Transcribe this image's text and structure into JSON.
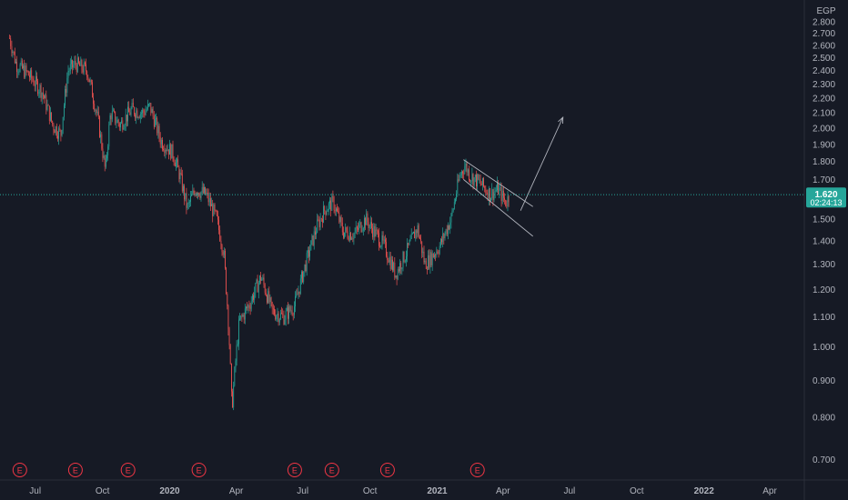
{
  "currency": "EGP",
  "price_badge": {
    "price": "1.620",
    "countdown": "02:24:13"
  },
  "earnings_marker_label": "E",
  "colors": {
    "background": "#161a25",
    "up": "#26a69a",
    "down": "#ef5350",
    "price_line": "#26a69a",
    "earnings": "#f23645",
    "drawing": "#b2b5be"
  },
  "chart_data": {
    "type": "candlestick",
    "title": "",
    "xlabel": "",
    "ylabel": "",
    "y_scale": "log",
    "ylim": [
      0.66,
      2.86
    ],
    "xlim": [
      "2019-05-25",
      "2022-05-25"
    ],
    "grid": false,
    "y_ticks": [
      "2.800",
      "2.700",
      "2.600",
      "2.500",
      "2.400",
      "2.300",
      "2.200",
      "2.100",
      "2.000",
      "1.900",
      "1.800",
      "1.700",
      "1.600",
      "1.500",
      "1.400",
      "1.300",
      "1.200",
      "1.100",
      "1.000",
      "0.900",
      "0.800",
      "0.700"
    ],
    "x_ticks": [
      {
        "label": "Jul",
        "date": "2019-07-01",
        "bold": false
      },
      {
        "label": "Oct",
        "date": "2019-10-01",
        "bold": false
      },
      {
        "label": "2020",
        "date": "2020-01-01",
        "bold": true
      },
      {
        "label": "Apr",
        "date": "2020-04-01",
        "bold": false
      },
      {
        "label": "Jul",
        "date": "2020-07-01",
        "bold": false
      },
      {
        "label": "Oct",
        "date": "2020-10-01",
        "bold": false
      },
      {
        "label": "2021",
        "date": "2021-01-01",
        "bold": true
      },
      {
        "label": "Apr",
        "date": "2021-04-01",
        "bold": false
      },
      {
        "label": "Jul",
        "date": "2021-07-01",
        "bold": false
      },
      {
        "label": "Oct",
        "date": "2021-10-01",
        "bold": false
      },
      {
        "label": "2022",
        "date": "2022-01-01",
        "bold": true
      },
      {
        "label": "Apr",
        "date": "2022-04-01",
        "bold": false
      }
    ],
    "current_price": 1.62,
    "price_path": [
      [
        "2019-05-27",
        2.66
      ],
      [
        "2019-06-05",
        2.45
      ],
      [
        "2019-06-20",
        2.38
      ],
      [
        "2019-07-10",
        2.25
      ],
      [
        "2019-07-25",
        2.02
      ],
      [
        "2019-08-05",
        1.96
      ],
      [
        "2019-08-15",
        2.4
      ],
      [
        "2019-08-25",
        2.45
      ],
      [
        "2019-09-10",
        2.4
      ],
      [
        "2019-09-25",
        2.05
      ],
      [
        "2019-10-05",
        1.74
      ],
      [
        "2019-10-12",
        2.1
      ],
      [
        "2019-10-25",
        2.02
      ],
      [
        "2019-11-10",
        2.12
      ],
      [
        "2019-11-25",
        2.1
      ],
      [
        "2019-12-05",
        2.14
      ],
      [
        "2019-12-20",
        1.92
      ],
      [
        "2020-01-05",
        1.85
      ],
      [
        "2020-01-15",
        1.72
      ],
      [
        "2020-01-25",
        1.55
      ],
      [
        "2020-02-05",
        1.65
      ],
      [
        "2020-02-20",
        1.62
      ],
      [
        "2020-03-05",
        1.5
      ],
      [
        "2020-03-15",
        1.35
      ],
      [
        "2020-03-22",
        1.05
      ],
      [
        "2020-03-26",
        0.82
      ],
      [
        "2020-04-05",
        1.08
      ],
      [
        "2020-04-20",
        1.15
      ],
      [
        "2020-05-05",
        1.25
      ],
      [
        "2020-05-20",
        1.12
      ],
      [
        "2020-06-05",
        1.1
      ],
      [
        "2020-06-20",
        1.14
      ],
      [
        "2020-07-05",
        1.3
      ],
      [
        "2020-07-20",
        1.46
      ],
      [
        "2020-08-01",
        1.55
      ],
      [
        "2020-08-12",
        1.58
      ],
      [
        "2020-08-25",
        1.44
      ],
      [
        "2020-09-10",
        1.43
      ],
      [
        "2020-09-25",
        1.5
      ],
      [
        "2020-10-05",
        1.45
      ],
      [
        "2020-10-20",
        1.38
      ],
      [
        "2020-11-05",
        1.26
      ],
      [
        "2020-11-20",
        1.35
      ],
      [
        "2020-12-05",
        1.46
      ],
      [
        "2020-12-15",
        1.3
      ],
      [
        "2020-12-22",
        1.32
      ],
      [
        "2021-01-05",
        1.38
      ],
      [
        "2021-01-20",
        1.5
      ],
      [
        "2021-02-01",
        1.72
      ],
      [
        "2021-02-08",
        1.78
      ],
      [
        "2021-02-15",
        1.72
      ],
      [
        "2021-03-01",
        1.68
      ],
      [
        "2021-03-15",
        1.62
      ],
      [
        "2021-03-25",
        1.65
      ],
      [
        "2021-04-05",
        1.58
      ],
      [
        "2021-04-10",
        1.62
      ]
    ],
    "earnings_dates": [
      "2019-06-10",
      "2019-08-25",
      "2019-11-05",
      "2020-02-10",
      "2020-06-20",
      "2020-08-10",
      "2020-10-25",
      "2021-02-25"
    ],
    "annotations": [
      {
        "type": "channel_line",
        "from": [
          "2021-02-06",
          1.81
        ],
        "to": [
          "2021-05-12",
          1.56
        ]
      },
      {
        "type": "channel_line",
        "from": [
          "2021-02-06",
          1.7
        ],
        "to": [
          "2021-05-12",
          1.42
        ]
      },
      {
        "type": "arrow",
        "from": [
          "2021-04-25",
          1.54
        ],
        "to": [
          "2021-06-22",
          2.07
        ]
      }
    ]
  }
}
